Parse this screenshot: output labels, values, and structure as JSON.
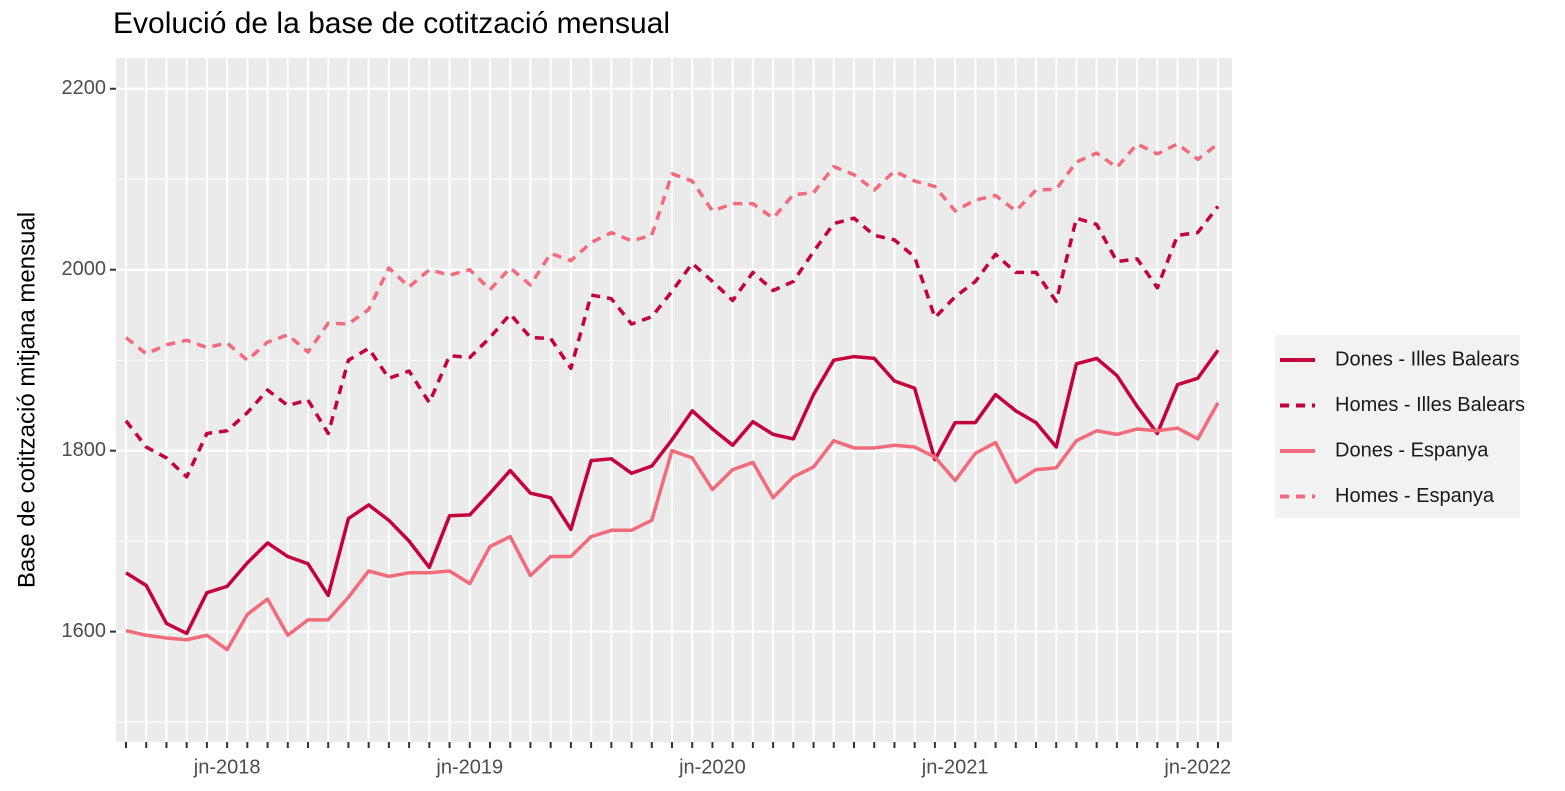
{
  "chart_data": {
    "type": "line",
    "title": "Evolució de la base de cotització mensual",
    "y_label": "Base de cotització mitjana mensual",
    "categories": [
      null,
      null,
      null,
      null,
      null,
      "jn-2018",
      null,
      null,
      null,
      null,
      null,
      null,
      null,
      null,
      null,
      null,
      null,
      "jn-2019",
      null,
      null,
      null,
      null,
      null,
      null,
      null,
      null,
      null,
      null,
      null,
      "jn-2020",
      null,
      null,
      null,
      null,
      null,
      null,
      null,
      null,
      null,
      null,
      null,
      "jn-2021",
      null,
      null,
      null,
      null,
      null,
      null,
      null,
      null,
      null,
      null,
      null,
      "jn-2022",
      null
    ],
    "series": [
      {
        "name": "Dones - Illes Balears",
        "color": "#c4003f",
        "linetype": "solid",
        "values": [
          1665,
          1651,
          1609,
          1598,
          1643,
          1650,
          1676,
          1698,
          1683,
          1675,
          1640,
          1725,
          1740,
          1723,
          1700,
          1671,
          1728,
          1729,
          1753,
          1778,
          1753,
          1748,
          1713,
          1789,
          1791,
          1775,
          1783,
          1812,
          1844,
          1824,
          1806,
          1832,
          1818,
          1813,
          1862,
          1900,
          1904,
          1902,
          1877,
          1869,
          1790,
          1831,
          1831,
          1862,
          1844,
          1831,
          1804,
          1896,
          1902,
          1883,
          1849,
          1819,
          1873,
          1880,
          1911
        ]
      },
      {
        "name": "Homes - Illes Balears",
        "color": "#c4003f",
        "linetype": "dashed",
        "values": [
          1833,
          1804,
          1792,
          1771,
          1819,
          1822,
          1842,
          1867,
          1850,
          1856,
          1819,
          1900,
          1913,
          1880,
          1888,
          1853,
          1905,
          1903,
          1925,
          1951,
          1925,
          1924,
          1891,
          1972,
          1968,
          1940,
          1948,
          1976,
          2007,
          1987,
          1966,
          1997,
          1977,
          1987,
          2020,
          2051,
          2057,
          2038,
          2033,
          2014,
          1947,
          1970,
          1987,
          2017,
          1997,
          1997,
          1965,
          2057,
          2050,
          2009,
          2012,
          1980,
          2038,
          2041,
          2070
        ]
      },
      {
        "name": "Dones - Espanya",
        "color": "#f26b7a",
        "linetype": "solid",
        "values": [
          1601,
          1596,
          1593,
          1591,
          1596,
          1580,
          1619,
          1636,
          1596,
          1613,
          1613,
          1638,
          1667,
          1661,
          1665,
          1665,
          1667,
          1653,
          1694,
          1705,
          1662,
          1683,
          1683,
          1705,
          1712,
          1712,
          1723,
          1800,
          1792,
          1757,
          1779,
          1787,
          1748,
          1771,
          1782,
          1811,
          1803,
          1803,
          1806,
          1804,
          1793,
          1767,
          1797,
          1809,
          1765,
          1779,
          1781,
          1811,
          1822,
          1818,
          1824,
          1822,
          1825,
          1813,
          1853
        ]
      },
      {
        "name": "Homes - Espanya",
        "color": "#f26b7a",
        "linetype": "dashed",
        "values": [
          1925,
          1907,
          1917,
          1922,
          1914,
          1919,
          1900,
          1920,
          1928,
          1909,
          1941,
          1940,
          1956,
          2002,
          1981,
          2000,
          1994,
          2000,
          1978,
          2002,
          1983,
          2018,
          2010,
          2030,
          2041,
          2032,
          2038,
          2106,
          2098,
          2065,
          2073,
          2073,
          2057,
          2083,
          2085,
          2114,
          2105,
          2088,
          2109,
          2098,
          2092,
          2065,
          2077,
          2082,
          2065,
          2088,
          2089,
          2119,
          2129,
          2113,
          2139,
          2128,
          2139,
          2122,
          2139
        ]
      }
    ],
    "ylim": [
      1478,
      2234
    ],
    "yticks": [
      1600,
      1800,
      2000,
      2200
    ],
    "grid": true,
    "legend": "right"
  }
}
